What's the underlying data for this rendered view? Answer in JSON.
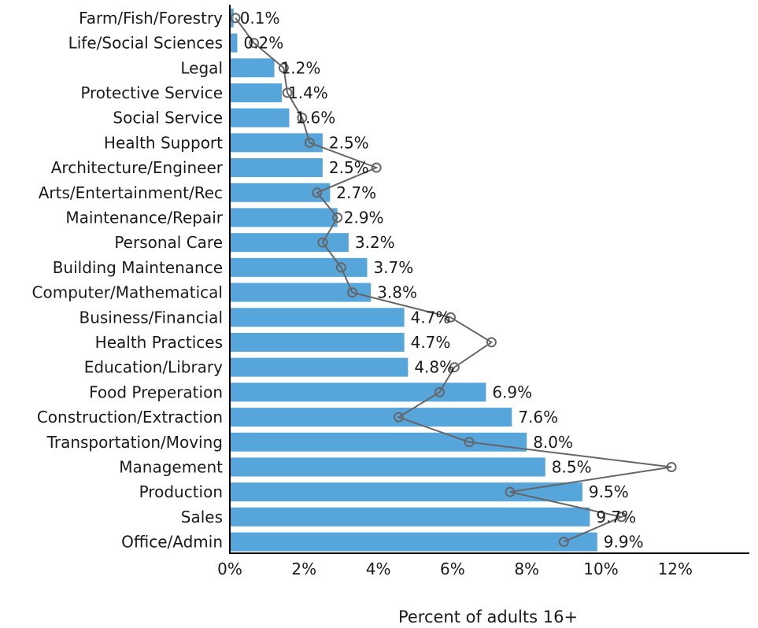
{
  "chart_data": {
    "type": "bar",
    "orientation": "horizontal",
    "title": "",
    "xlabel": "Percent of adults 16+",
    "ylabel": "",
    "xlim": [
      0,
      14
    ],
    "xticks": [
      0,
      2,
      4,
      6,
      8,
      10,
      12
    ],
    "xtick_labels": [
      "0%",
      "2%",
      "4%",
      "6%",
      "8%",
      "10%",
      "12%"
    ],
    "grid": false,
    "colors": {
      "bar": "#56A5DB",
      "line": "#666666"
    },
    "categories": [
      "Farm/Fish/Forestry",
      "Life/Social Sciences",
      "Legal",
      "Protective Service",
      "Social Service",
      "Health Support",
      "Architecture/Engineer",
      "Arts/Entertainment/Rec",
      "Maintenance/Repair",
      "Personal Care",
      "Building Maintenance",
      "Computer/Mathematical",
      "Business/Financial",
      "Health Practices",
      "Education/Library",
      "Food Preperation",
      "Construction/Extraction",
      "Transportation/Moving",
      "Management",
      "Production",
      "Sales",
      "Office/Admin"
    ],
    "series": [
      {
        "type": "bar",
        "values": [
          0.1,
          0.2,
          1.2,
          1.4,
          1.6,
          2.5,
          2.5,
          2.7,
          2.9,
          3.2,
          3.7,
          3.8,
          4.7,
          4.7,
          4.8,
          6.9,
          7.6,
          8.0,
          8.5,
          9.5,
          9.7,
          9.9
        ],
        "labels": [
          "0.1%",
          "0.2%",
          "1.2%",
          "1.4%",
          "1.6%",
          "2.5%",
          "2.5%",
          "2.7%",
          "2.9%",
          "3.2%",
          "3.7%",
          "3.8%",
          "4.7%",
          "4.7%",
          "4.8%",
          "6.9%",
          "7.6%",
          "8.0%",
          "8.5%",
          "9.5%",
          "9.7%",
          "9.9%"
        ]
      },
      {
        "type": "line",
        "marker": "open-circle",
        "values": [
          0.15,
          0.65,
          1.45,
          1.55,
          1.95,
          2.15,
          3.95,
          2.35,
          2.9,
          2.5,
          3.0,
          3.3,
          5.95,
          7.05,
          6.05,
          5.65,
          4.55,
          6.45,
          11.9,
          7.55,
          10.55,
          9.0
        ]
      }
    ]
  }
}
